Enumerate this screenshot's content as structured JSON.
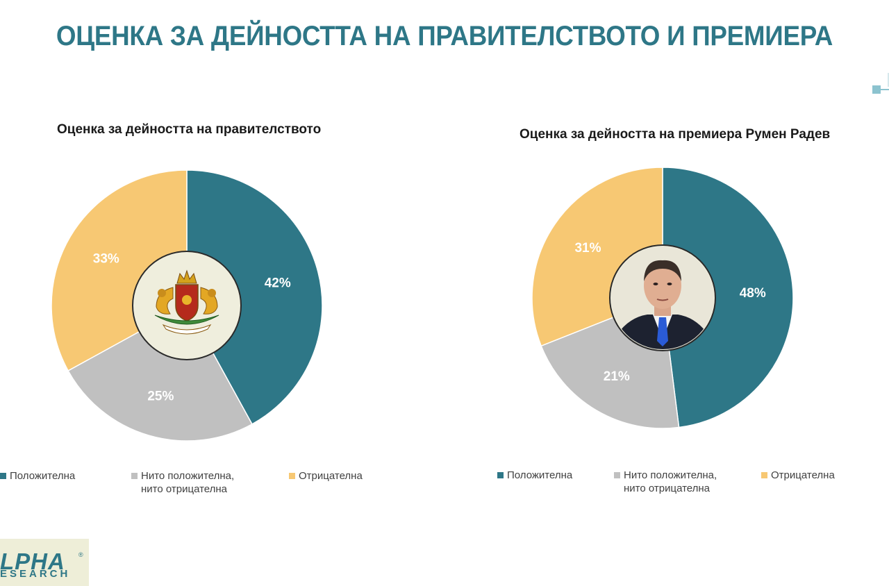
{
  "title": "ОЦЕНКА ЗА ДЕЙНОСТТА НА ПРАВИТЕЛСТВОТО И ПРЕМИЕРА",
  "logo": {
    "top": "LPHA",
    "bottom": "ESEARCH",
    "reg": "®"
  },
  "colors": {
    "positive": "#2e7787",
    "neutral": "#c0c0c0",
    "negative": "#f7c873",
    "title": "#2e7787"
  },
  "chart_data": [
    {
      "type": "pie",
      "title": "Оценка за дейността на правителството",
      "center_image": "bulgarian-coat-of-arms",
      "categories": [
        "Положителна",
        "Нито положителна, нито отрицателна",
        "Отрицателна"
      ],
      "values": [
        42,
        25,
        33
      ],
      "labels": [
        "42%",
        "25%",
        "33%"
      ],
      "legend": [
        {
          "line1": "Положителна",
          "line2": ""
        },
        {
          "line1": "Нито положителна,",
          "line2": "нито отрицателна"
        },
        {
          "line1": "Отрицателна",
          "line2": ""
        }
      ],
      "legend_position": "bottom"
    },
    {
      "type": "pie",
      "title": "Оценка за дейността на премиера Румен Радев",
      "center_image": "portrait-photo",
      "categories": [
        "Положителна",
        "Нито положителна, нито отрицателна",
        "Отрицателна"
      ],
      "values": [
        48,
        21,
        31
      ],
      "labels": [
        "48%",
        "21%",
        "31%"
      ],
      "legend": [
        {
          "line1": "Положителна",
          "line2": ""
        },
        {
          "line1": "Нито положителна,",
          "line2": "нито отрицателна"
        },
        {
          "line1": "Отрицателна",
          "line2": ""
        }
      ],
      "legend_position": "bottom"
    }
  ]
}
